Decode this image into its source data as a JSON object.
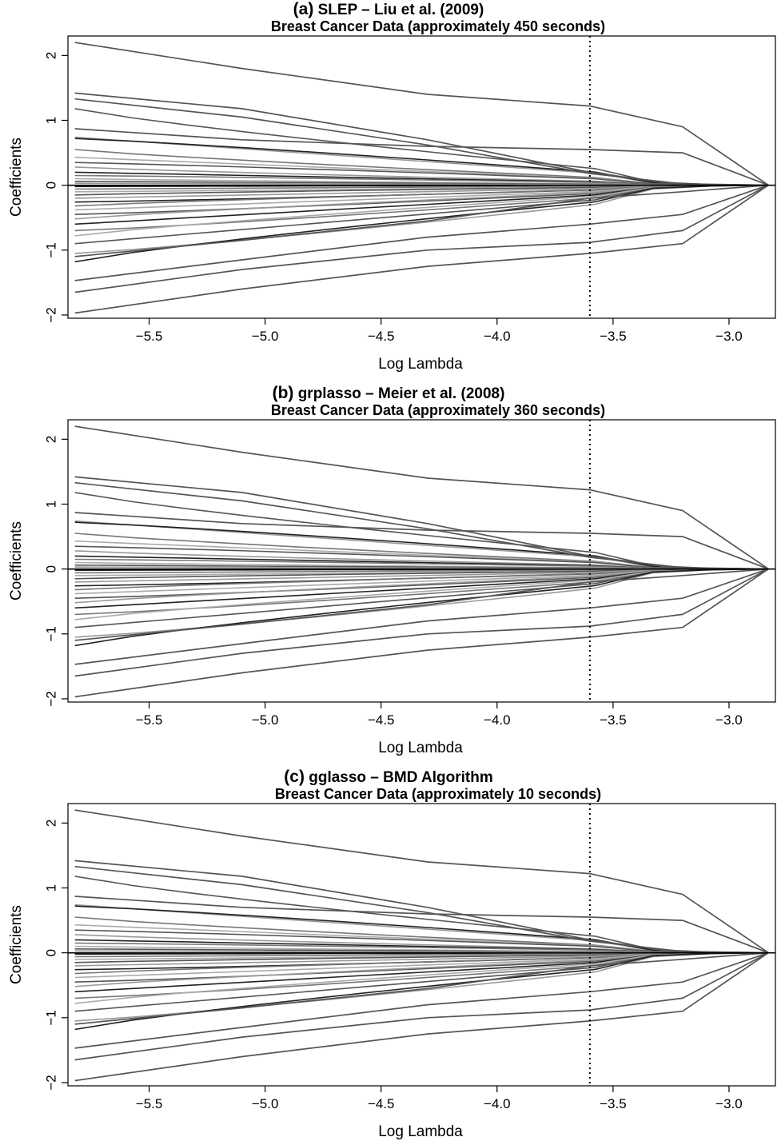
{
  "chart_data": [
    {
      "type": "line",
      "title_prefix": "(a)",
      "title_main": "SLEP – Liu et al. (2009)",
      "subtitle": "Breast Cancer Data (approximately 450 seconds)",
      "xlabel": "Log Lambda",
      "ylabel": "Coefficients",
      "xlim": [
        -5.85,
        -2.8
      ],
      "ylim": [
        -2.05,
        2.3
      ],
      "xticks": [
        -5.5,
        -5.0,
        -4.5,
        -4.0,
        -3.5,
        -3.0
      ],
      "xtick_labels": [
        "−5.5",
        "−5.0",
        "−4.5",
        "−4.0",
        "−3.5",
        "−3.0"
      ],
      "yticks": [
        -2,
        -1,
        0,
        1,
        2
      ],
      "ytick_labels": [
        "−2",
        "−1",
        "0",
        "1",
        "2"
      ],
      "x_start": -5.82,
      "x_end": -2.83,
      "vline_x": -3.6,
      "zero_line": true,
      "series_colors": [
        "#555555",
        "#999999",
        "#222222",
        "#777777",
        "#aaaaaa"
      ],
      "outer_paths": [
        [
          2.2,
          1.8,
          1.4,
          1.22,
          0.9,
          0.0
        ],
        [
          1.42,
          1.18,
          0.7,
          0.2,
          0.0,
          0.0
        ],
        [
          1.33,
          1.05,
          0.62,
          0.18,
          0.02,
          0.0
        ],
        [
          0.87,
          0.7,
          0.6,
          0.55,
          0.5,
          0.0
        ],
        [
          -1.97,
          -1.6,
          -1.25,
          -1.05,
          -0.9,
          0.0
        ],
        [
          -1.65,
          -1.3,
          -1.0,
          -0.88,
          -0.7,
          0.0
        ],
        [
          -1.47,
          -1.15,
          -0.8,
          -0.6,
          -0.45,
          0.0
        ],
        [
          -1.1,
          -0.85,
          -0.55,
          -0.2,
          -0.1,
          0.0
        ]
      ],
      "inner_start_values": [
        1.18,
        0.74,
        0.72,
        0.55,
        0.43,
        0.35,
        0.28,
        0.2,
        0.15,
        0.1,
        0.06,
        0.03,
        -0.02,
        -0.06,
        -0.1,
        -0.15,
        -0.2,
        -0.26,
        -0.32,
        -0.38,
        -0.45,
        -0.52,
        -0.6,
        -0.7,
        -0.78,
        -0.9,
        -1.05,
        -1.18
      ]
    },
    {
      "type": "line",
      "title_prefix": "(b)",
      "title_main": "grplasso – Meier et al. (2008)",
      "subtitle": "Breast Cancer Data (approximately 360 seconds)",
      "xlabel": "Log Lambda",
      "ylabel": "Coefficients",
      "xlim": [
        -5.85,
        -2.8
      ],
      "ylim": [
        -2.05,
        2.3
      ],
      "xticks": [
        -5.5,
        -5.0,
        -4.5,
        -4.0,
        -3.5,
        -3.0
      ],
      "xtick_labels": [
        "−5.5",
        "−5.0",
        "−4.5",
        "−4.0",
        "−3.5",
        "−3.0"
      ],
      "yticks": [
        -2,
        -1,
        0,
        1,
        2
      ],
      "ytick_labels": [
        "−2",
        "−1",
        "0",
        "1",
        "2"
      ],
      "x_start": -5.82,
      "x_end": -2.83,
      "vline_x": -3.6,
      "zero_line": true,
      "series_colors": [
        "#555555",
        "#999999",
        "#222222",
        "#777777",
        "#aaaaaa"
      ],
      "outer_paths": [
        [
          2.2,
          1.8,
          1.4,
          1.22,
          0.9,
          0.0
        ],
        [
          1.42,
          1.18,
          0.7,
          0.2,
          0.0,
          0.0
        ],
        [
          1.33,
          1.05,
          0.62,
          0.18,
          0.02,
          0.0
        ],
        [
          0.87,
          0.7,
          0.6,
          0.55,
          0.5,
          0.0
        ],
        [
          -1.97,
          -1.6,
          -1.25,
          -1.05,
          -0.9,
          0.0
        ],
        [
          -1.65,
          -1.3,
          -1.0,
          -0.88,
          -0.7,
          0.0
        ],
        [
          -1.47,
          -1.15,
          -0.8,
          -0.6,
          -0.45,
          0.0
        ],
        [
          -1.1,
          -0.85,
          -0.55,
          -0.2,
          -0.1,
          0.0
        ]
      ],
      "inner_start_values": [
        1.18,
        0.74,
        0.72,
        0.55,
        0.43,
        0.35,
        0.28,
        0.2,
        0.15,
        0.1,
        0.06,
        0.03,
        -0.02,
        -0.06,
        -0.1,
        -0.15,
        -0.2,
        -0.26,
        -0.32,
        -0.38,
        -0.45,
        -0.52,
        -0.6,
        -0.7,
        -0.78,
        -0.9,
        -1.05,
        -1.18
      ]
    },
    {
      "type": "line",
      "title_prefix": "(c)",
      "title_main": "gglasso – BMD Algorithm",
      "subtitle": "Breast Cancer Data (approximately 10 seconds)",
      "xlabel": "Log Lambda",
      "ylabel": "Coefficients",
      "xlim": [
        -5.85,
        -2.8
      ],
      "ylim": [
        -2.05,
        2.3
      ],
      "xticks": [
        -5.5,
        -5.0,
        -4.5,
        -4.0,
        -3.5,
        -3.0
      ],
      "xtick_labels": [
        "−5.5",
        "−5.0",
        "−4.5",
        "−4.0",
        "−3.5",
        "−3.0"
      ],
      "yticks": [
        -2,
        -1,
        0,
        1,
        2
      ],
      "ytick_labels": [
        "−2",
        "−1",
        "0",
        "1",
        "2"
      ],
      "x_start": -5.82,
      "x_end": -2.83,
      "vline_x": -3.6,
      "zero_line": true,
      "series_colors": [
        "#555555",
        "#999999",
        "#222222",
        "#777777",
        "#aaaaaa"
      ],
      "outer_paths": [
        [
          2.2,
          1.8,
          1.4,
          1.22,
          0.9,
          0.0
        ],
        [
          1.42,
          1.18,
          0.7,
          0.2,
          0.0,
          0.0
        ],
        [
          1.33,
          1.05,
          0.62,
          0.18,
          0.02,
          0.0
        ],
        [
          0.87,
          0.7,
          0.6,
          0.55,
          0.5,
          0.0
        ],
        [
          -1.97,
          -1.6,
          -1.25,
          -1.05,
          -0.9,
          0.0
        ],
        [
          -1.65,
          -1.3,
          -1.0,
          -0.88,
          -0.7,
          0.0
        ],
        [
          -1.47,
          -1.15,
          -0.8,
          -0.6,
          -0.45,
          0.0
        ],
        [
          -1.1,
          -0.85,
          -0.55,
          -0.2,
          -0.1,
          0.0
        ]
      ],
      "inner_start_values": [
        1.18,
        0.74,
        0.72,
        0.55,
        0.43,
        0.35,
        0.28,
        0.2,
        0.15,
        0.1,
        0.06,
        0.03,
        -0.02,
        -0.06,
        -0.1,
        -0.15,
        -0.2,
        -0.26,
        -0.32,
        -0.38,
        -0.45,
        -0.52,
        -0.6,
        -0.7,
        -0.78,
        -0.9,
        -1.05,
        -1.18
      ]
    }
  ]
}
